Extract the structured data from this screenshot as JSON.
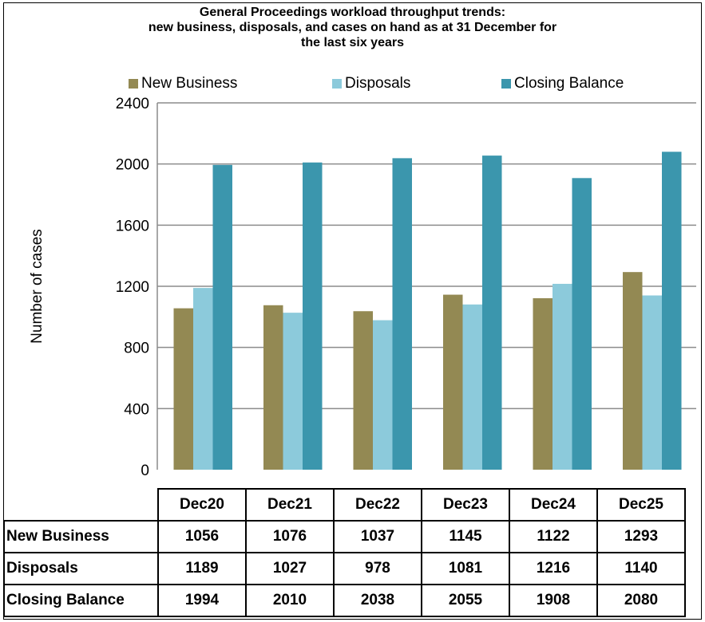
{
  "chart_data": {
    "type": "bar",
    "title_lines": [
      "General Proceedings workload throughput trends:",
      "new business, disposals, and cases on hand as at 31 December for",
      "the last six years"
    ],
    "xlabel": "",
    "ylabel": "Number of cases",
    "ylim": [
      0,
      2400
    ],
    "yticks": [
      "0",
      "400",
      "800",
      "1200",
      "1600",
      "2000",
      "2400"
    ],
    "grid": "horizontal",
    "legend_position": "top",
    "categories": [
      "Dec20",
      "Dec21",
      "Dec22",
      "Dec23",
      "Dec24",
      "Dec25"
    ],
    "series": [
      {
        "name": "New Business",
        "color": "#938953",
        "values": [
          1056,
          1076,
          1037,
          1145,
          1122,
          1293
        ]
      },
      {
        "name": "Disposals",
        "color": "#8ccadb",
        "values": [
          1189,
          1027,
          978,
          1081,
          1216,
          1140
        ]
      },
      {
        "name": "Closing Balance",
        "color": "#3b96ad",
        "values": [
          1994,
          2010,
          2038,
          2055,
          1908,
          2080
        ]
      }
    ],
    "table": {
      "rows": [
        {
          "label": "New Business",
          "values": [
            "1056",
            "1076",
            "1037",
            "1145",
            "1122",
            "1293"
          ]
        },
        {
          "label": "Disposals",
          "values": [
            "1189",
            "1027",
            "978",
            "1081",
            "1216",
            "1140"
          ]
        },
        {
          "label": "Closing Balance",
          "values": [
            "1994",
            "2010",
            "2038",
            "2055",
            "1908",
            "2080"
          ]
        }
      ]
    }
  }
}
